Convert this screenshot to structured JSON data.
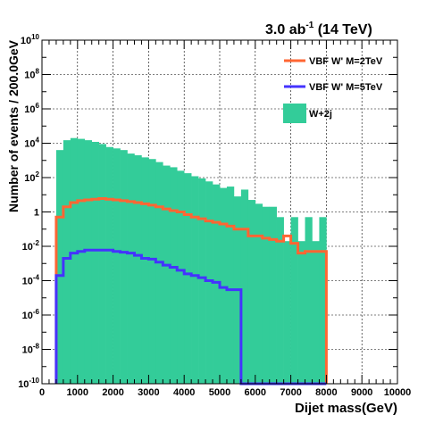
{
  "chart_data": {
    "type": "bar",
    "title": {
      "main": "3.0 ab",
      "superscript": "-1",
      "suffix": " (14 TeV)"
    },
    "xlabel": "Dijet mass(GeV)",
    "ylabel": "Number of events / 200.0GeV",
    "xlim": [
      0,
      10000
    ],
    "ylim": [
      1e-10,
      10000000000.0
    ],
    "yscale": "log",
    "bin_width": 200,
    "grid": true,
    "legend_position": "top-right",
    "x_ticks": [
      {
        "value": 0,
        "label": "0"
      },
      {
        "value": 1000,
        "label": "1000"
      },
      {
        "value": 2000,
        "label": "2000"
      },
      {
        "value": 3000,
        "label": "3000"
      },
      {
        "value": 4000,
        "label": "4000"
      },
      {
        "value": 5000,
        "label": "5000"
      },
      {
        "value": 6000,
        "label": "6000"
      },
      {
        "value": 7000,
        "label": "7000"
      },
      {
        "value": 8000,
        "label": "8000"
      },
      {
        "value": 9000,
        "label": "9000"
      },
      {
        "value": 10000,
        "label": "10000"
      }
    ],
    "y_ticks": [
      {
        "value": -10,
        "base": "10",
        "exp": "-10"
      },
      {
        "value": -8,
        "base": "10",
        "exp": "-8"
      },
      {
        "value": -6,
        "base": "10",
        "exp": "-6"
      },
      {
        "value": -4,
        "base": "10",
        "exp": "-4"
      },
      {
        "value": -2,
        "base": "10",
        "exp": "-2"
      },
      {
        "value": 0,
        "base": "1",
        "exp": ""
      },
      {
        "value": 2,
        "base": "10",
        "exp": "2"
      },
      {
        "value": 4,
        "base": "10",
        "exp": "4"
      },
      {
        "value": 6,
        "base": "10",
        "exp": "6"
      },
      {
        "value": 8,
        "base": "10",
        "exp": "8"
      },
      {
        "value": 10,
        "base": "10",
        "exp": "10"
      }
    ],
    "series": [
      {
        "name": "W+2j",
        "style": "filled",
        "color": "#33cc99",
        "bin_lo": [
          400,
          600,
          800,
          1000,
          1200,
          1400,
          1600,
          1800,
          2000,
          2200,
          2400,
          2600,
          2800,
          3000,
          3200,
          3400,
          3600,
          3800,
          4000,
          4200,
          4400,
          4600,
          4800,
          5000,
          5200,
          5400,
          5600,
          5800,
          6000,
          6200,
          6400,
          6600,
          6800,
          7000,
          7200,
          7400,
          7600,
          7800
        ],
        "values": [
          4000,
          15000,
          20000,
          18000,
          15000,
          12000,
          9000,
          6000,
          5000,
          4000,
          2500,
          2000,
          1500,
          1200,
          800,
          500,
          400,
          250,
          180,
          120,
          90,
          60,
          40,
          25,
          30,
          8,
          20,
          5,
          3,
          2,
          2,
          0.5,
          0.02,
          0.5,
          0.02,
          0.5,
          0.02,
          0.5
        ]
      },
      {
        "name": "VBF W' M=2TeV",
        "style": "line",
        "color": "#ff6633",
        "bin_lo": [
          400,
          600,
          800,
          1000,
          1200,
          1400,
          1600,
          1800,
          2000,
          2200,
          2400,
          2600,
          2800,
          3000,
          3200,
          3400,
          3600,
          3800,
          4000,
          4200,
          4400,
          4600,
          4800,
          5000,
          5200,
          5400,
          5600,
          5800,
          6000,
          6200,
          6400,
          6600,
          6800,
          7000,
          7200,
          7400,
          7600,
          7800
        ],
        "values": [
          0.5,
          2,
          3.5,
          4.5,
          5,
          5.5,
          6,
          5.5,
          5,
          4.5,
          4,
          3.5,
          3,
          2.5,
          2,
          1.5,
          1.2,
          1,
          0.7,
          0.5,
          0.4,
          0.3,
          0.25,
          0.2,
          0.15,
          0.1,
          0.1,
          0.04,
          0.04,
          0.03,
          0.025,
          0.02,
          0.04,
          0.015,
          0.004,
          0.005,
          0.005,
          0.005
        ]
      },
      {
        "name": "VBF W' M=5TeV",
        "style": "line",
        "color": "#4433ff",
        "bin_lo": [
          400,
          600,
          800,
          1000,
          1200,
          1400,
          1600,
          1800,
          2000,
          2200,
          2400,
          2600,
          2800,
          3000,
          3200,
          3400,
          3600,
          3800,
          4000,
          4200,
          4400,
          4600,
          4800,
          5000,
          5200,
          5400,
          5600,
          5800,
          6000,
          6200,
          6400,
          6600,
          6800,
          7000,
          7200,
          7400,
          7600,
          7800
        ],
        "values": [
          0.0002,
          0.002,
          0.004,
          0.005,
          0.006,
          0.006,
          0.006,
          0.006,
          0.005,
          0.0045,
          0.004,
          0.003,
          0.002,
          0.0018,
          0.0012,
          0.0008,
          0.0006,
          0.0004,
          0.00025,
          0.0002,
          0.00015,
          0.0001,
          8e-05,
          4e-05,
          3e-05,
          3e-05,
          1e-10,
          1e-10,
          1e-10,
          1e-10,
          1e-10,
          1e-10,
          1e-10,
          1e-10,
          1e-10,
          1e-10,
          1e-10,
          1e-10
        ]
      }
    ],
    "legend": [
      {
        "label": "VBF W' M=2TeV",
        "style": "line",
        "color": "#ff6633"
      },
      {
        "label": "VBF W' M=5TeV",
        "style": "line",
        "color": "#4433ff"
      },
      {
        "label": "W+2j",
        "style": "filled",
        "color": "#33cc99"
      }
    ]
  }
}
